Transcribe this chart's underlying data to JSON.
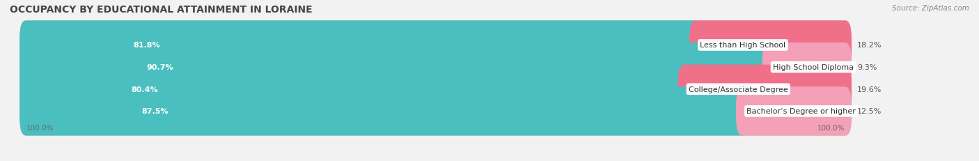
{
  "title": "OCCUPANCY BY EDUCATIONAL ATTAINMENT IN LORAINE",
  "source": "Source: ZipAtlas.com",
  "categories": [
    "Less than High School",
    "High School Diploma",
    "College/Associate Degree",
    "Bachelor’s Degree or higher"
  ],
  "owner_values": [
    81.8,
    90.7,
    80.4,
    87.5
  ],
  "renter_values": [
    18.2,
    9.3,
    19.6,
    12.5
  ],
  "owner_color": "#4BBFBF",
  "renter_color_1": "#F0708A",
  "renter_color_2": "#F4A0B8",
  "renter_color_3": "#F0708A",
  "renter_color_4": "#F4A0B8",
  "bar_height": 0.62,
  "bg_color": "#f2f2f2",
  "bar_bg_color": "#e8e8e8",
  "title_fontsize": 10,
  "label_fontsize": 8,
  "value_fontsize": 8,
  "tick_fontsize": 7.5,
  "source_fontsize": 7.5
}
